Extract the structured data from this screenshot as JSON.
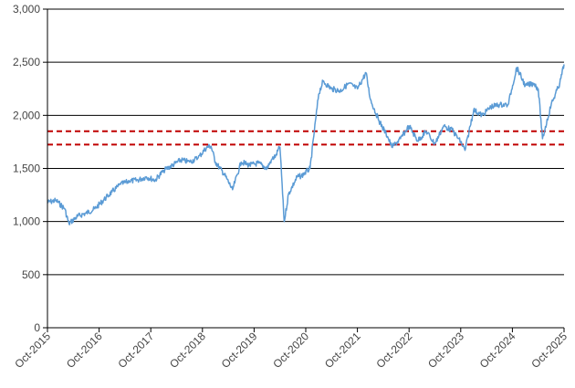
{
  "chart_data": {
    "type": "line",
    "title": "",
    "xlabel": "",
    "ylabel": "",
    "ylim": [
      0,
      3000
    ],
    "y_ticks": [
      0,
      500,
      1000,
      1500,
      2000,
      2500,
      3000
    ],
    "y_tick_labels": [
      "0",
      "500",
      "1,000",
      "1,500",
      "2,000",
      "2,500",
      "3,000"
    ],
    "x_range": [
      "2015-10",
      "2025-10"
    ],
    "x_ticks": [
      "2015-10",
      "2016-10",
      "2017-10",
      "2018-10",
      "2019-10",
      "2020-10",
      "2021-10",
      "2022-10",
      "2023-10",
      "2024-10",
      "2025-10"
    ],
    "x_tick_labels": [
      "Oct-2015",
      "Oct-2016",
      "Oct-2017",
      "Oct-2018",
      "Oct-2019",
      "Oct-2020",
      "Oct-2021",
      "Oct-2022",
      "Oct-2023",
      "Oct-2024",
      "Oct-2025"
    ],
    "grid": "horizontal",
    "series": [
      {
        "color": "#5b9bd5",
        "x": [
          "2015-10",
          "2015-12",
          "2016-02",
          "2016-03",
          "2016-05",
          "2016-07",
          "2016-09",
          "2016-11",
          "2017-01",
          "2017-03",
          "2017-05",
          "2017-07",
          "2017-09",
          "2017-11",
          "2018-01",
          "2018-03",
          "2018-05",
          "2018-07",
          "2018-09",
          "2018-11",
          "2018-12",
          "2019-01",
          "2019-03",
          "2019-05",
          "2019-07",
          "2019-09",
          "2019-11",
          "2020-01",
          "2020-02",
          "2020-03",
          "2020-04",
          "2020-05",
          "2020-06",
          "2020-08",
          "2020-09",
          "2020-11",
          "2020-12",
          "2021-01",
          "2021-02",
          "2021-04",
          "2021-06",
          "2021-08",
          "2021-10",
          "2021-12",
          "2022-01",
          "2022-03",
          "2022-05",
          "2022-06",
          "2022-08",
          "2022-10",
          "2022-12",
          "2023-02",
          "2023-04",
          "2023-06",
          "2023-08",
          "2023-10",
          "2023-11",
          "2024-01",
          "2024-03",
          "2024-05",
          "2024-07",
          "2024-09",
          "2024-11",
          "2025-01",
          "2025-03",
          "2025-04",
          "2025-05",
          "2025-07",
          "2025-09",
          "2025-10"
        ],
        "values": [
          1180,
          1200,
          1120,
          980,
          1050,
          1080,
          1120,
          1200,
          1280,
          1350,
          1380,
          1390,
          1420,
          1390,
          1480,
          1530,
          1580,
          1560,
          1600,
          1700,
          1710,
          1560,
          1450,
          1300,
          1560,
          1530,
          1550,
          1500,
          1580,
          1620,
          1700,
          1000,
          1260,
          1420,
          1430,
          1500,
          1850,
          2200,
          2320,
          2250,
          2230,
          2300,
          2250,
          2400,
          2150,
          1950,
          1800,
          1700,
          1780,
          1900,
          1760,
          1850,
          1730,
          1900,
          1860,
          1750,
          1670,
          2050,
          2000,
          2080,
          2100,
          2100,
          2450,
          2280,
          2300,
          2250,
          1780,
          2100,
          2300,
          2480
        ]
      }
    ],
    "reference_lines": [
      {
        "value": 1850,
        "color": "#c00000",
        "style": "dashed"
      },
      {
        "value": 1725,
        "color": "#c00000",
        "style": "dashed"
      }
    ]
  }
}
